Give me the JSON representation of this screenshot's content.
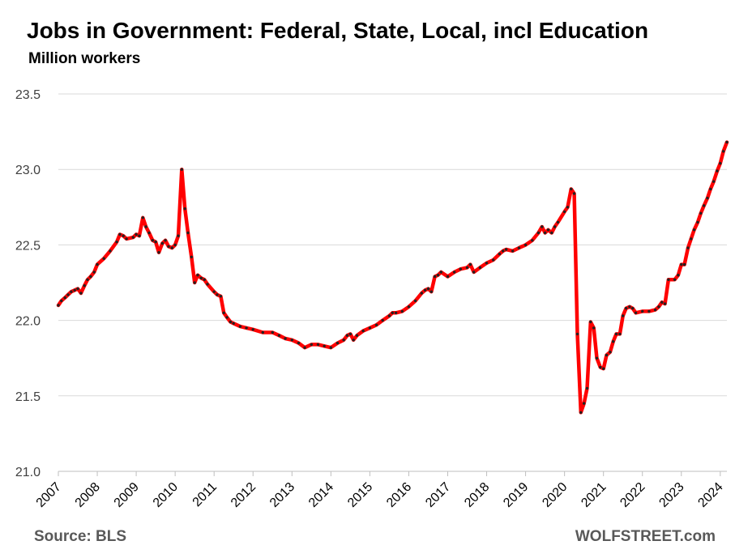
{
  "title": "Jobs in Government: Federal, State, Local, incl Education",
  "subtitle": "Million workers",
  "source": "Source: BLS",
  "brand": "WOLFSTREET.com",
  "colors": {
    "line": "#ff0000",
    "markers": "#222222",
    "grid": "#d9d9d9",
    "axis": "#bfbfbf"
  },
  "chart_data": {
    "type": "line",
    "title": "Jobs in Government: Federal, State, Local, incl Education",
    "ylabel": "Million workers",
    "ylim": [
      21.0,
      23.5
    ],
    "yticks": [
      "21.0",
      "21.5",
      "22.0",
      "22.5",
      "23.0",
      "23.5"
    ],
    "xlim": [
      2007.0,
      2024.17
    ],
    "xticks": [
      "2007",
      "2008",
      "2009",
      "2010",
      "2011",
      "2012",
      "2013",
      "2014",
      "2015",
      "2016",
      "2017",
      "2018",
      "2019",
      "2020",
      "2021",
      "2022",
      "2023",
      "2024"
    ],
    "grid": true,
    "series": [
      {
        "x": [
          2007.0,
          2007.08,
          2007.17,
          2007.25,
          2007.33,
          2007.42,
          2007.5,
          2007.58,
          2007.67,
          2007.75,
          2007.83,
          2007.92,
          2008.0,
          2008.17,
          2008.33,
          2008.5,
          2008.58,
          2008.67,
          2008.75,
          2008.92,
          2009.0,
          2009.08,
          2009.17,
          2009.25,
          2009.33,
          2009.42,
          2009.5,
          2009.58,
          2009.67,
          2009.75,
          2009.83,
          2009.92,
          2010.0,
          2010.08,
          2010.17,
          2010.25,
          2010.33,
          2010.42,
          2010.5,
          2010.58,
          2010.67,
          2010.75,
          2010.83,
          2011.0,
          2011.08,
          2011.17,
          2011.25,
          2011.33,
          2011.42,
          2011.5,
          2011.67,
          2011.83,
          2012.0,
          2012.25,
          2012.5,
          2012.67,
          2012.83,
          2013.0,
          2013.17,
          2013.33,
          2013.5,
          2013.67,
          2013.83,
          2014.0,
          2014.17,
          2014.33,
          2014.42,
          2014.5,
          2014.58,
          2014.67,
          2014.83,
          2015.0,
          2015.17,
          2015.33,
          2015.5,
          2015.58,
          2015.67,
          2015.83,
          2016.0,
          2016.17,
          2016.33,
          2016.42,
          2016.5,
          2016.58,
          2016.67,
          2016.75,
          2016.83,
          2017.0,
          2017.17,
          2017.33,
          2017.5,
          2017.58,
          2017.67,
          2017.83,
          2018.0,
          2018.17,
          2018.33,
          2018.42,
          2018.5,
          2018.67,
          2018.83,
          2019.0,
          2019.17,
          2019.33,
          2019.42,
          2019.5,
          2019.58,
          2019.67,
          2019.75,
          2019.83,
          2020.0,
          2020.08,
          2020.17,
          2020.25,
          2020.33,
          2020.42,
          2020.5,
          2020.58,
          2020.67,
          2020.75,
          2020.83,
          2020.92,
          2021.0,
          2021.08,
          2021.17,
          2021.25,
          2021.33,
          2021.42,
          2021.5,
          2021.58,
          2021.67,
          2021.75,
          2021.83,
          2022.0,
          2022.17,
          2022.33,
          2022.42,
          2022.5,
          2022.58,
          2022.67,
          2022.83,
          2022.92,
          2023.0,
          2023.08,
          2023.17,
          2023.25,
          2023.33,
          2023.42,
          2023.5,
          2023.58,
          2023.67,
          2023.75,
          2023.83,
          2023.92,
          2024.0,
          2024.08,
          2024.17
        ],
        "values": [
          22.1,
          22.13,
          22.15,
          22.17,
          22.19,
          22.2,
          22.21,
          22.18,
          22.23,
          22.27,
          22.29,
          22.32,
          22.37,
          22.41,
          22.46,
          22.52,
          22.57,
          22.56,
          22.54,
          22.55,
          22.57,
          22.56,
          22.68,
          22.62,
          22.58,
          22.53,
          22.52,
          22.45,
          22.51,
          22.53,
          22.49,
          22.48,
          22.5,
          22.56,
          23.0,
          22.74,
          22.58,
          22.42,
          22.25,
          22.3,
          22.28,
          22.27,
          22.24,
          22.19,
          22.17,
          22.16,
          22.05,
          22.02,
          21.99,
          21.98,
          21.96,
          21.95,
          21.94,
          21.92,
          21.92,
          21.9,
          21.88,
          21.87,
          21.85,
          21.82,
          21.84,
          21.84,
          21.83,
          21.82,
          21.85,
          21.87,
          21.9,
          21.91,
          21.87,
          21.9,
          21.93,
          21.95,
          21.97,
          22.0,
          22.03,
          22.05,
          22.05,
          22.06,
          22.09,
          22.13,
          22.18,
          22.2,
          22.21,
          22.19,
          22.29,
          22.3,
          22.32,
          22.29,
          22.32,
          22.34,
          22.35,
          22.37,
          22.32,
          22.35,
          22.38,
          22.4,
          22.44,
          22.46,
          22.47,
          22.46,
          22.48,
          22.5,
          22.53,
          22.58,
          22.62,
          22.58,
          22.6,
          22.58,
          22.62,
          22.65,
          22.72,
          22.75,
          22.87,
          22.84,
          21.91,
          21.39,
          21.45,
          21.55,
          21.99,
          21.95,
          21.75,
          21.69,
          21.68,
          21.77,
          21.79,
          21.86,
          21.91,
          21.91,
          22.03,
          22.08,
          22.09,
          22.08,
          22.05,
          22.06,
          22.06,
          22.07,
          22.09,
          22.12,
          22.11,
          22.27,
          22.27,
          22.3,
          22.37,
          22.37,
          22.48,
          22.54,
          22.6,
          22.65,
          22.71,
          22.76,
          22.81,
          22.87,
          22.92,
          22.99,
          23.04,
          23.12,
          23.18
        ]
      }
    ]
  }
}
